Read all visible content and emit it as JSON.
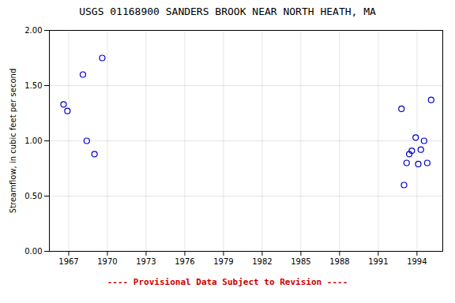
{
  "chart_data": {
    "type": "scatter",
    "title": "USGS 01168900 SANDERS BROOK NEAR NORTH HEATH, MA",
    "ylabel": "Streamflow, in cubic feet per second",
    "x": [
      1966.6,
      1966.9,
      1968.1,
      1968.4,
      1969.0,
      1969.6,
      1992.8,
      1993.0,
      1993.2,
      1993.4,
      1993.6,
      1993.9,
      1994.1,
      1994.3,
      1994.55,
      1994.8,
      1995.1
    ],
    "values": [
      1.33,
      1.27,
      1.6,
      1.0,
      0.88,
      1.75,
      1.29,
      0.6,
      0.8,
      0.88,
      0.91,
      1.03,
      0.79,
      0.92,
      1.0,
      0.8,
      1.37
    ],
    "color": "#0000CC",
    "marker": "circle",
    "xlim": [
      1965.5,
      1996.0
    ],
    "ylim": [
      0.0,
      2.0
    ],
    "xticks": [
      1967,
      1970,
      1973,
      1976,
      1979,
      1982,
      1985,
      1988,
      1991,
      1994
    ],
    "yticks": [
      {
        "value": 0.0,
        "label": "0.00"
      },
      {
        "value": 0.5,
        "label": "0.50"
      },
      {
        "value": 1.0,
        "label": "1.00"
      },
      {
        "value": 1.5,
        "label": "1.50"
      },
      {
        "value": 2.0,
        "label": "2.00"
      }
    ],
    "grid": true,
    "annotations": [
      {
        "text": "---- Provisional Data Subject to Revision ----",
        "color": "#CC0000"
      }
    ]
  }
}
